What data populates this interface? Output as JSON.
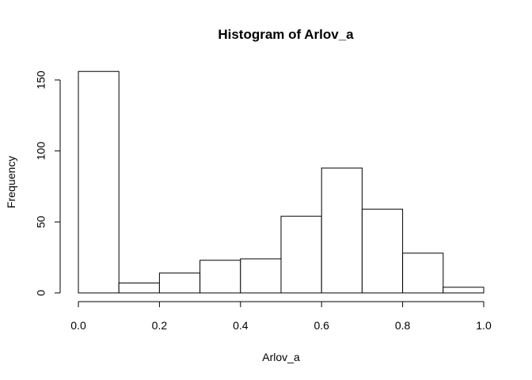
{
  "chart_data": {
    "type": "bar",
    "title": "Histogram of Arlov_a",
    "xlabel": "Arlov_a",
    "ylabel": "Frequency",
    "bins": [
      {
        "x0": 0.0,
        "x1": 0.1,
        "count": 156
      },
      {
        "x0": 0.1,
        "x1": 0.2,
        "count": 7
      },
      {
        "x0": 0.2,
        "x1": 0.3,
        "count": 14
      },
      {
        "x0": 0.3,
        "x1": 0.4,
        "count": 23
      },
      {
        "x0": 0.4,
        "x1": 0.5,
        "count": 24
      },
      {
        "x0": 0.5,
        "x1": 0.6,
        "count": 54
      },
      {
        "x0": 0.6,
        "x1": 0.7,
        "count": 88
      },
      {
        "x0": 0.7,
        "x1": 0.8,
        "count": 59
      },
      {
        "x0": 0.8,
        "x1": 0.9,
        "count": 28
      },
      {
        "x0": 0.9,
        "x1": 1.0,
        "count": 4
      }
    ],
    "xlim": [
      0.0,
      1.0
    ],
    "ylim": [
      0,
      150
    ],
    "x_ticks": [
      "0.0",
      "0.2",
      "0.4",
      "0.6",
      "0.8",
      "1.0"
    ],
    "y_ticks": [
      "0",
      "50",
      "100",
      "150"
    ],
    "grid": false,
    "bar_fill": "#ffffff",
    "bar_stroke": "#000000"
  }
}
